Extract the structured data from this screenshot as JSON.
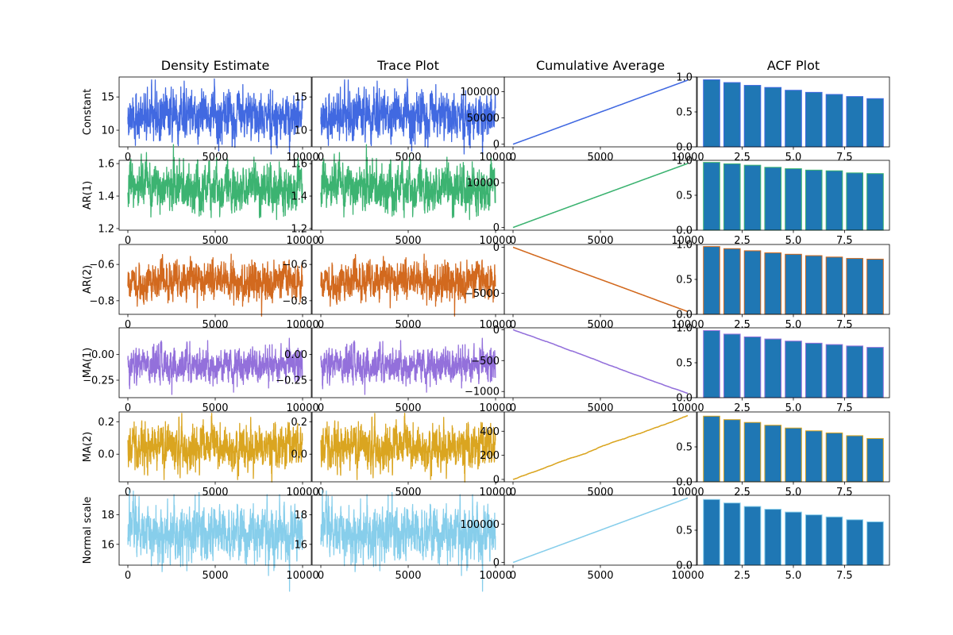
{
  "figure": {
    "column_titles": [
      "Density Estimate",
      "Trace Plot",
      "Cumulative Average",
      "ACF Plot"
    ],
    "row_labels": [
      "Constant",
      "AR(1)",
      "AR(2)",
      "MA(1)",
      "MA(2)",
      "Normal scale"
    ]
  },
  "chart_data": {
    "type": "mcmc-diagnostics-grid",
    "n_iterations": 10000,
    "series": [
      {
        "name": "Constant",
        "color": "#4169e1",
        "trace_mean": 12.2,
        "trace_amp": 1.8,
        "trace_seed": 11,
        "trace_ylim": [
          7.5,
          18
        ],
        "trace_yticks": [
          10,
          15
        ],
        "cum_end": 122000,
        "cum_ylim": [
          -5000,
          128000
        ],
        "cum_yticks": [
          0,
          50000,
          100000
        ],
        "acf": [
          0.96,
          0.92,
          0.88,
          0.85,
          0.81,
          0.78,
          0.75,
          0.72,
          0.69
        ]
      },
      {
        "name": "AR(1)",
        "color": "#3cb371",
        "trace_mean": 1.45,
        "trace_amp": 0.07,
        "trace_seed": 23,
        "trace_ylim": [
          1.19,
          1.62
        ],
        "trace_yticks": [
          1.2,
          1.4,
          1.6
        ],
        "cum_end": 14300,
        "cum_ylim": [
          -600,
          15000
        ],
        "cum_yticks": [
          0,
          10000
        ],
        "acf": [
          0.97,
          0.95,
          0.93,
          0.9,
          0.88,
          0.86,
          0.85,
          0.82,
          0.81
        ]
      },
      {
        "name": "AR(2)",
        "color": "#d2691e",
        "trace_mean": -0.7,
        "trace_amp": 0.05,
        "trace_seed": 37,
        "trace_ylim": [
          -0.875,
          -0.49
        ],
        "trace_yticks": [
          -0.8,
          -0.6
        ],
        "cum_end": -7000,
        "cum_ylim": [
          -7300,
          300
        ],
        "cum_yticks": [
          -5000,
          0
        ],
        "acf": [
          0.97,
          0.94,
          0.91,
          0.88,
          0.86,
          0.84,
          0.82,
          0.8,
          0.79
        ]
      },
      {
        "name": "MA(1)",
        "color": "#9370db",
        "trace_mean": -0.1,
        "trace_amp": 0.08,
        "trace_seed": 41,
        "trace_ylim": [
          -0.42,
          0.26
        ],
        "trace_yticks": [
          -0.25,
          0.0
        ],
        "cum_end": -1030,
        "cum_ylim": [
          -1100,
          30
        ],
        "cum_yticks": [
          -1000,
          -500,
          0
        ],
        "acf": [
          0.96,
          0.91,
          0.87,
          0.84,
          0.81,
          0.78,
          0.76,
          0.74,
          0.72
        ]
      },
      {
        "name": "MA(2)",
        "color": "#daa520",
        "trace_mean": 0.05,
        "trace_amp": 0.07,
        "trace_seed": 53,
        "trace_ylim": [
          -0.17,
          0.26
        ],
        "trace_yticks": [
          0.0,
          0.2
        ],
        "cum_end": 530,
        "cum_ylim": [
          -20,
          560
        ],
        "cum_yticks": [
          0,
          200,
          400
        ],
        "acf": [
          0.94,
          0.89,
          0.85,
          0.81,
          0.77,
          0.73,
          0.7,
          0.66,
          0.62
        ]
      },
      {
        "name": "Normal scale",
        "color": "#87ceeb",
        "trace_mean": 16.8,
        "trace_amp": 0.9,
        "trace_seed": 67,
        "trace_ylim": [
          14.6,
          19.3
        ],
        "trace_yticks": [
          16,
          18
        ],
        "cum_end": 168000,
        "cum_ylim": [
          -7000,
          175000
        ],
        "cum_yticks": [
          0,
          100000
        ],
        "acf": [
          0.94,
          0.89,
          0.84,
          0.8,
          0.76,
          0.72,
          0.69,
          0.65,
          0.62
        ]
      }
    ],
    "trace_xlim": [
      -500,
      10500
    ],
    "trace_xticks": [
      0,
      5000,
      10000
    ],
    "acf_lags": [
      1,
      2,
      3,
      4,
      5,
      6,
      7,
      8,
      9
    ],
    "acf_xlim": [
      0.3,
      9.7
    ],
    "acf_xticks": [
      2.5,
      5.0,
      7.5
    ],
    "acf_ylim": [
      0,
      1.0
    ],
    "acf_bar_color": "#1f77b4",
    "acf_yticks_full": [
      0.0,
      0.5,
      1.0
    ],
    "acf_yticks_partial": [
      0.0,
      0.5
    ]
  }
}
